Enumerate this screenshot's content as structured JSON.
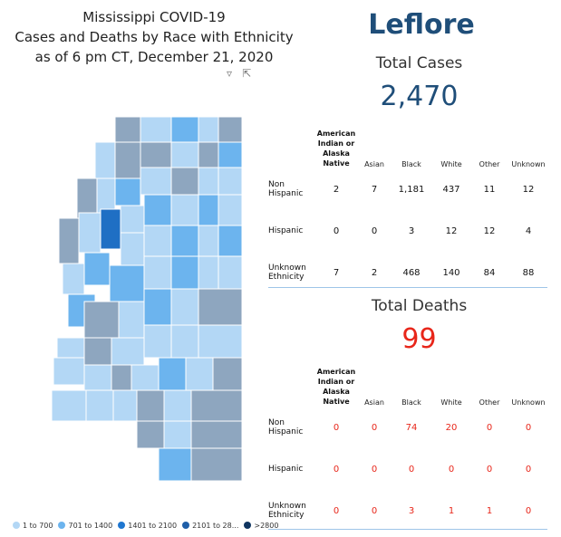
{
  "title": {
    "line1": "Mississippi COVID-19",
    "line2": "Cases and Deaths by Race with Ethnicity",
    "line3": "as of 6 pm CT, December 21, 2020"
  },
  "county": "Leflore",
  "total_cases_label": "Total Cases",
  "total_cases_value": "2,470",
  "total_deaths_label": "Total Deaths",
  "total_deaths_value": "99",
  "table_headers": {
    "american_indian": "American Indian or Alaska Native",
    "asian": "Asian",
    "black": "Black",
    "white": "White",
    "other": "Other",
    "unknown": "Unknown"
  },
  "cases_rows": [
    {
      "label": "Non Hispanic",
      "values": [
        "2",
        "7",
        "1,181",
        "437",
        "11",
        "12"
      ]
    },
    {
      "label": "Hispanic",
      "values": [
        "0",
        "0",
        "3",
        "12",
        "12",
        "4"
      ]
    },
    {
      "label": "Unknown Ethnicity",
      "values": [
        "7",
        "2",
        "468",
        "140",
        "84",
        "88"
      ]
    }
  ],
  "deaths_rows": [
    {
      "label": "Non Hispanic",
      "values": [
        "0",
        "0",
        "74",
        "20",
        "0",
        "0"
      ]
    },
    {
      "label": "Hispanic",
      "values": [
        "0",
        "0",
        "0",
        "0",
        "0",
        "0"
      ]
    },
    {
      "label": "Unknown Ethnicity",
      "values": [
        "0",
        "0",
        "3",
        "1",
        "1",
        "0"
      ]
    }
  ],
  "legend": [
    {
      "label": "1 to 700",
      "color": "#b3d7f5"
    },
    {
      "label": "701 to 1400",
      "color": "#6cb4ee"
    },
    {
      "label": "1401 to 2100",
      "color": "#1f77d0"
    },
    {
      "label": "2101 to 28...",
      "color": "#1f5fa8"
    },
    {
      "label": ">2800",
      "color": "#0f3560"
    }
  ],
  "colors": {
    "county_name": "#1f4e79",
    "cases_value": "#1f4e79",
    "deaths_value": "#e8261a",
    "selected_county": "#1f6fc4",
    "unselected_county": "#8ea6bf",
    "divider": "#9ec5e8"
  },
  "icons": [
    "filter-icon",
    "focus-mode-icon"
  ]
}
